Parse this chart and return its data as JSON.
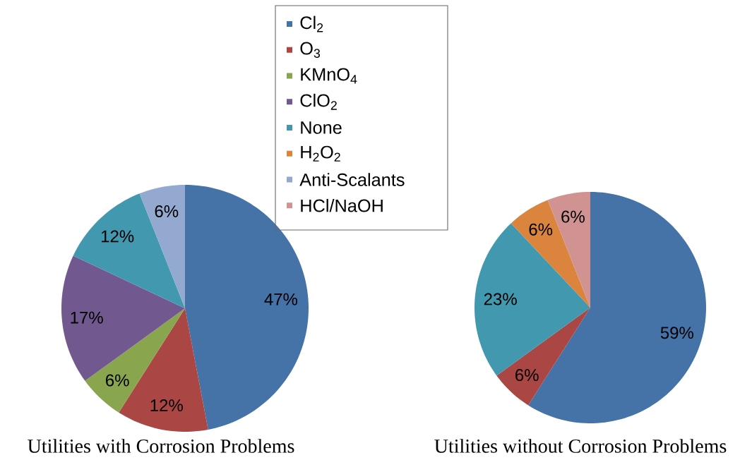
{
  "chart_data": [
    {
      "type": "pie",
      "title": "Utilities with Corrosion Problems",
      "categories": [
        "Cl$_{2}$",
        "O$_{3}$",
        "KMnO$_{4}$",
        "ClO$_{2}$",
        "None",
        "H$_{2}$O$_{2}$",
        "Anti-Scalants",
        "HCl/NaOH"
      ],
      "values": [
        47,
        12,
        6,
        17,
        12,
        0,
        6,
        0
      ],
      "value_labels": [
        "47%",
        "12%",
        "6%",
        "17%",
        "12%",
        null,
        "6%",
        null
      ],
      "colors": [
        "#4572a7",
        "#aa4643",
        "#89a54e",
        "#71588f",
        "#4198af",
        "#db843d",
        "#93a9cf",
        "#d19392"
      ],
      "legend": "top"
    },
    {
      "type": "pie",
      "title": "Utilities without Corrosion Problems",
      "categories": [
        null,
        null,
        null,
        null,
        null,
        null,
        null,
        null
      ],
      "values": [
        59,
        6,
        0,
        0,
        23,
        6,
        0,
        6
      ],
      "value_labels": [
        "59%",
        "6%",
        null,
        null,
        "23%",
        "6%",
        null,
        "6%"
      ],
      "colors": [
        "#4572a7",
        "#aa4643",
        "#89a54e",
        "#71588f",
        "#4198af",
        "#db843d",
        "#93a9cf",
        "#d19392"
      ]
    }
  ]
}
